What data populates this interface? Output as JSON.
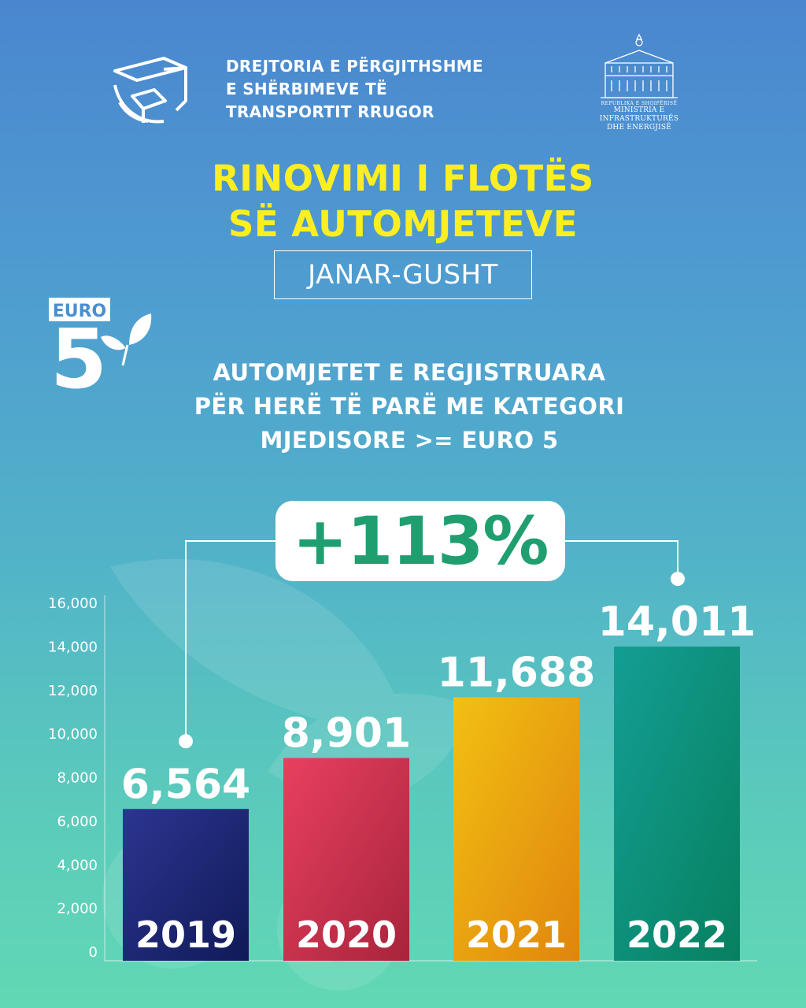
{
  "header": {
    "agency_line1": "DREJTORIA E PËRGJITHSHME",
    "agency_line2": "E SHËRBIMEVE TË",
    "agency_line3": "TRANSPORTIT RRUGOR",
    "ministry_small": "REPUBLIKA E SHQIPËRISË",
    "ministry_line1": "MINISTRIA E INFRASTRUKTURËS",
    "ministry_line2": "DHE ENERGJISË"
  },
  "title": {
    "line1": "RINOVIMI I FLOTËS",
    "line2": "SË AUTOMJETEVE"
  },
  "period": "JANAR-GUSHT",
  "badge": {
    "top": "EURO",
    "number": "5"
  },
  "subtitle": {
    "line1": "AUTOMJETET E REGJISTRUARA",
    "line2": "PËR HERË TË PARË ME KATEGORI",
    "line3": "MJEDISORE >= EURO 5"
  },
  "growth": "+113%",
  "colors": {
    "bg_top": "#4a86cf",
    "bg_bottom": "#62d8b4",
    "title": "#fcee21",
    "growth_text": "#1f9f70"
  },
  "chart_data": {
    "type": "bar",
    "categories": [
      "2019",
      "2020",
      "2021",
      "2022"
    ],
    "values": [
      6564,
      8901,
      11688,
      14011
    ],
    "value_labels": [
      "6,564",
      "8,901",
      "11,688",
      "14,011"
    ],
    "ylim": [
      0,
      16000
    ],
    "yticks": [
      0,
      2000,
      4000,
      6000,
      8000,
      10000,
      12000,
      14000,
      16000
    ],
    "ytick_labels": [
      "0",
      "2,000",
      "4,000",
      "6,000",
      "8,000",
      "10,000",
      "12,000",
      "14,000",
      "16,000"
    ],
    "bar_colors": [
      [
        "#2c3590",
        "#101a58"
      ],
      [
        "#e8405f",
        "#a8243b"
      ],
      [
        "#f2c012",
        "#e0850e"
      ],
      [
        "#139e94",
        "#07805f"
      ]
    ],
    "grid": false
  }
}
